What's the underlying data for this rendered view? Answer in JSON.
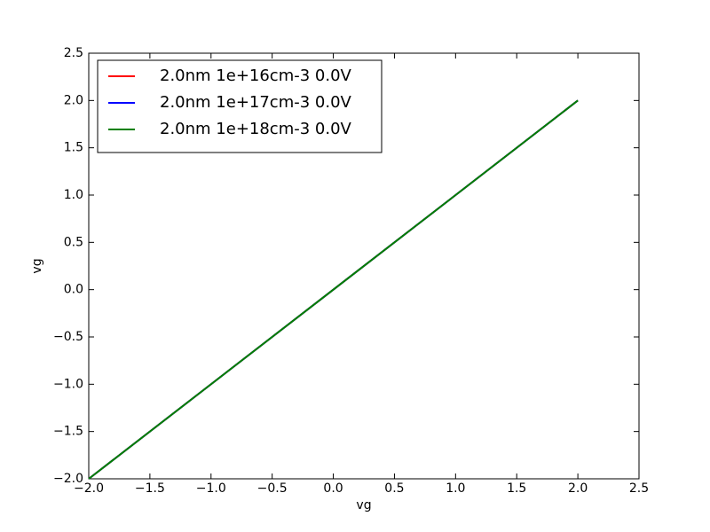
{
  "chart_data": {
    "type": "line",
    "xlabel": "vg",
    "ylabel": "vg",
    "x": [
      -2,
      2
    ],
    "series": [
      {
        "name": "2.0nm 1e+16cm-3 0.0V",
        "color": "#ff0000",
        "values": [
          -2,
          2
        ]
      },
      {
        "name": "2.0nm 1e+17cm-3 0.0V",
        "color": "#0000ff",
        "values": [
          -2,
          2
        ]
      },
      {
        "name": "2.0nm 1e+18cm-3 0.0V",
        "color": "#008000",
        "values": [
          -2,
          2
        ]
      }
    ],
    "xlim": [
      -2,
      2.5
    ],
    "xticks": [
      {
        "value": -2,
        "label": "−2.0"
      },
      {
        "value": -1.5,
        "label": "−1.5"
      },
      {
        "value": -1,
        "label": "−1.0"
      },
      {
        "value": -0.5,
        "label": "−0.5"
      },
      {
        "value": 0,
        "label": "0.0"
      },
      0.5,
      {
        "value": 1,
        "label": "1.0"
      },
      1.5,
      {
        "value": 2,
        "label": "2.0"
      },
      2.5
    ],
    "ylim": [
      -2,
      2.5
    ],
    "yticks": [
      {
        "value": -2,
        "label": "−2.0"
      },
      {
        "value": -1.5,
        "label": "−1.5"
      },
      {
        "value": -1,
        "label": "−1.0"
      },
      {
        "value": -0.5,
        "label": "−0.5"
      },
      {
        "value": 0,
        "label": "0.0"
      },
      0.5,
      {
        "value": 1,
        "label": "1.0"
      },
      1.5,
      {
        "value": 2,
        "label": "2.0"
      },
      2.5
    ],
    "grid": false,
    "legend": "upper-left"
  }
}
